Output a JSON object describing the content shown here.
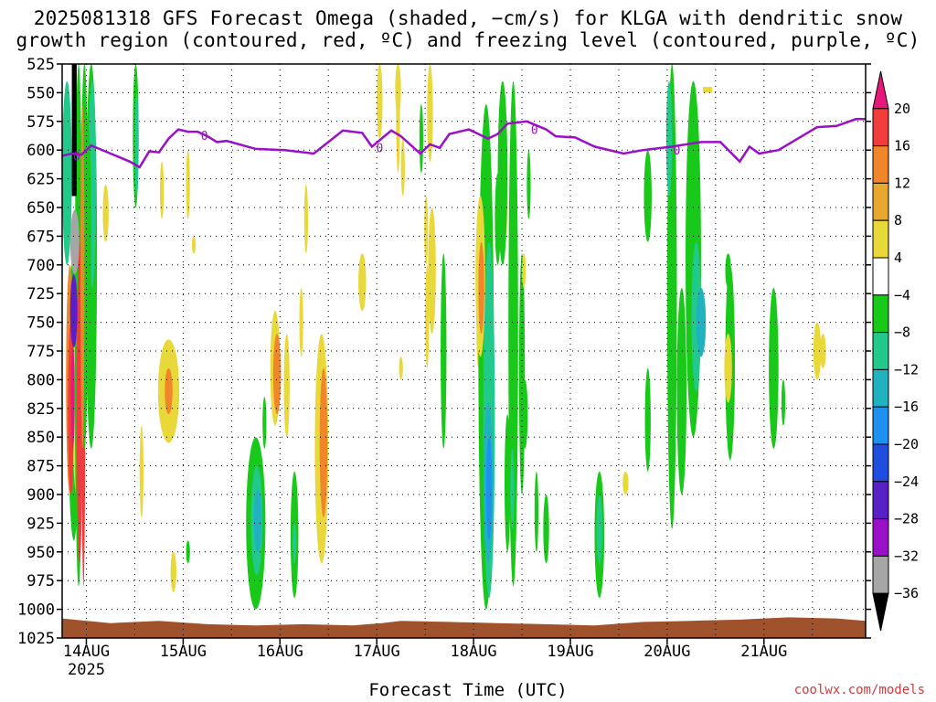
{
  "header": {
    "title_line1": "2025081318 GFS Forecast Omega (shaded, −cm/s) for KLGA with dendritic snow",
    "title_line2": "growth region (contoured, red, ºC) and freezing level (contoured, purple, ºC)"
  },
  "footer": {
    "xlabel": "Forecast Time (UTC)",
    "credit": "coolwx.com/models"
  },
  "colors": {
    "freezing_line": "#9a10c8",
    "ground": "#a0522d",
    "grid": "#000000"
  },
  "chart_data": {
    "type": "heatmap",
    "y_axis": {
      "label": "",
      "ticks": [
        "525",
        "550",
        "575",
        "600",
        "625",
        "650",
        "675",
        "700",
        "725",
        "750",
        "775",
        "800",
        "825",
        "850",
        "875",
        "900",
        "925",
        "950",
        "975",
        "1000",
        "1025"
      ],
      "range": [
        525,
        1025
      ],
      "inverted": true
    },
    "x_axis": {
      "label": "Forecast Time (UTC)",
      "ticks": [
        "14AUG",
        "15AUG",
        "16AUG",
        "17AUG",
        "18AUG",
        "19AUG",
        "20AUG",
        "21AUG"
      ],
      "first_tick_sublabel": "2025",
      "range_days_from_13AUG18Z": [
        0.0,
        8.3
      ]
    },
    "grid": true,
    "colorbar": {
      "labels": [
        "20",
        "16",
        "12",
        "8",
        "4",
        "−4",
        "−8",
        "−12",
        "−16",
        "−20",
        "−24",
        "−28",
        "−32",
        "−36"
      ],
      "colors": [
        "#e8177a",
        "#f03c3c",
        "#f0852a",
        "#e8a830",
        "#e8d83a",
        "#ffffff",
        "#19c919",
        "#21c98a",
        "#21b2c1",
        "#1e90f0",
        "#1f4de0",
        "#5a20c8",
        "#9a10c8",
        "#a6a6a6",
        "#000000"
      ]
    },
    "freezing_level": {
      "label": "0",
      "x_day": [
        0.0,
        0.1,
        0.2,
        0.3,
        0.5,
        0.7,
        0.8,
        0.9,
        1.0,
        1.1,
        1.2,
        1.3,
        1.4,
        1.5,
        1.6,
        1.7,
        2.0,
        2.3,
        2.6,
        2.9,
        3.1,
        3.2,
        3.4,
        3.5,
        3.7,
        3.8,
        3.9,
        4.0,
        4.2,
        4.4,
        4.5,
        4.6,
        4.8,
        5.0,
        5.1,
        5.3,
        5.5,
        5.8,
        6.0,
        6.3,
        6.6,
        6.8,
        7.0,
        7.1,
        7.2,
        7.4,
        7.6,
        7.8,
        8.0,
        8.2,
        8.3
      ],
      "pressure": [
        605,
        603,
        604,
        596,
        603,
        610,
        615,
        601,
        602,
        590,
        582,
        584,
        584,
        588,
        593,
        592,
        599,
        600,
        603,
        583,
        585,
        597,
        583,
        588,
        603,
        595,
        598,
        586,
        582,
        590,
        586,
        577,
        575,
        582,
        588,
        589,
        597,
        603,
        600,
        597,
        593,
        593,
        610,
        597,
        603,
        600,
        590,
        580,
        579,
        573,
        573
      ]
    },
    "dgz_contours": "red dendritic snow growth region (narrow, near 14AUG)"
  }
}
